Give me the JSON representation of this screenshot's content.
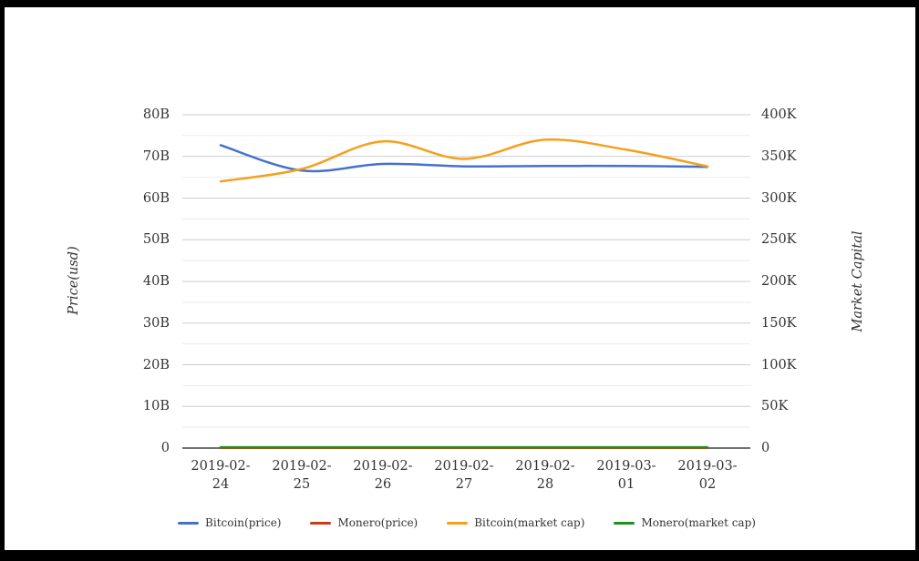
{
  "frame": {
    "border_color": "#000000",
    "background": "#ffffff"
  },
  "chart_data": {
    "type": "line",
    "curve": "smooth",
    "title": "",
    "x_categories": [
      "2019-02-24",
      "2019-02-25",
      "2019-02-26",
      "2019-02-27",
      "2019-02-28",
      "2019-03-01",
      "2019-03-02"
    ],
    "ylabel_left": "Price(usd)",
    "ylabel_right": "Market Capital",
    "y_left": {
      "ticks": [
        "80B",
        "70B",
        "60B",
        "50B",
        "40B",
        "30B",
        "20B",
        "10B",
        "0"
      ],
      "min": 0,
      "max": 80,
      "unit": "B"
    },
    "y_right": {
      "ticks": [
        "400K",
        "350K",
        "300K",
        "250K",
        "200K",
        "150K",
        "100K",
        "50K",
        "0"
      ],
      "min": 0,
      "max": 400,
      "unit": "K"
    },
    "grid": {
      "major_color": "#cccccc",
      "minor_color": "#ebebeb",
      "baseline_color": "#424242",
      "minor_per_major": 1
    },
    "legend_position": "bottom",
    "series": [
      {
        "name": "Bitcoin(price)",
        "axis": "left",
        "color": "#4470CE",
        "values": [
          72.7,
          66.6,
          68.2,
          67.6,
          67.7,
          67.7,
          67.5
        ]
      },
      {
        "name": "Monero(price)",
        "axis": "left",
        "color": "#CC3A1E",
        "values": [
          0.05,
          0.05,
          0.05,
          0.05,
          0.05,
          0.05,
          0.05
        ]
      },
      {
        "name": "Bitcoin(market cap)",
        "axis": "right",
        "color": "#F5A01E",
        "values": [
          320,
          335,
          368,
          347,
          370,
          358,
          338
        ]
      },
      {
        "name": "Monero(market cap)",
        "axis": "right",
        "color": "#1F8F1F",
        "values": [
          1.0,
          1.0,
          1.0,
          1.0,
          1.0,
          1.0,
          1.0
        ]
      }
    ]
  }
}
